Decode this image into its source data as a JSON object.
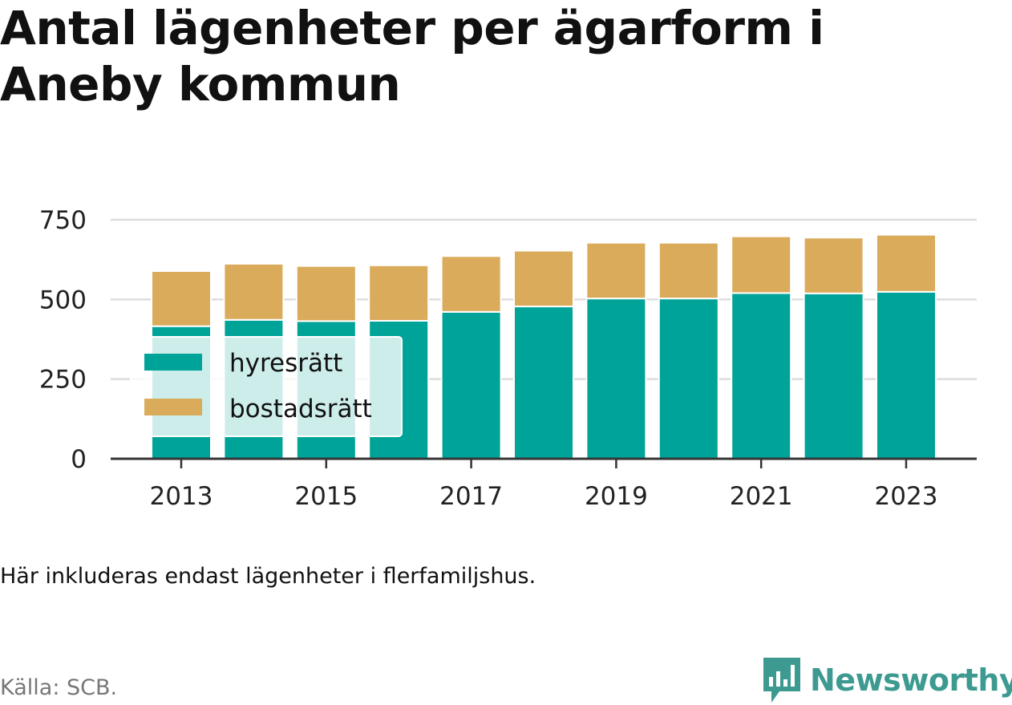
{
  "title": "Antal lägenheter per ägarform i Aneby kommun",
  "note": "Här inkluderas endast lägenheter i flerfamiljshus.",
  "source": "Källa: SCB.",
  "brand": {
    "name": "Newsworthy",
    "icon": "newsworthy-logo-icon",
    "color": "#3d9a91"
  },
  "colors": {
    "hyresratt": "#00a398",
    "bostadsratt": "#d9ab5b",
    "grid": "#dddddd",
    "axis": "#333333"
  },
  "chart_data": {
    "type": "bar",
    "stacked": true,
    "categories": [
      "2013",
      "2014",
      "2015",
      "2016",
      "2017",
      "2018",
      "2019",
      "2020",
      "2021",
      "2022",
      "2023"
    ],
    "x_tick_labels": [
      "2013",
      "2015",
      "2017",
      "2019",
      "2021",
      "2023"
    ],
    "series": [
      {
        "name": "hyresrätt",
        "values": [
          416,
          436,
          432,
          433,
          461,
          478,
          503,
          503,
          520,
          519,
          524
        ]
      },
      {
        "name": "bostadsrätt",
        "values": [
          173,
          176,
          173,
          174,
          175,
          175,
          175,
          175,
          178,
          175,
          179
        ]
      }
    ],
    "y_ticks": [
      0,
      250,
      500,
      750
    ],
    "ylim": [
      0,
      750
    ],
    "grid": true,
    "legend_position": "inside-left"
  }
}
